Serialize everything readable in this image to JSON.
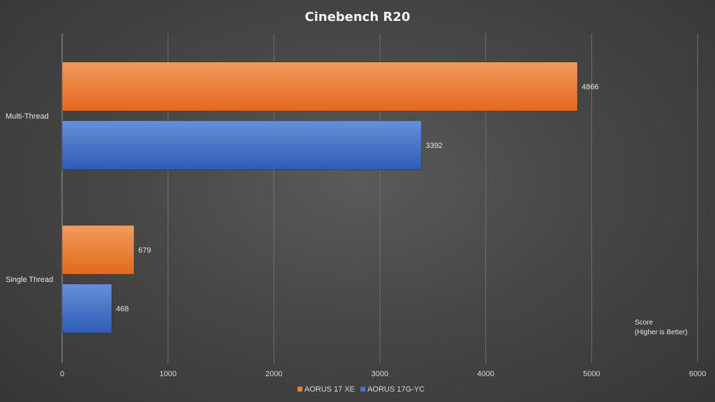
{
  "chart_data": {
    "type": "bar",
    "orientation": "horizontal",
    "title": "Cinebench  R20",
    "categories": [
      "Multi-Thread",
      "Single Thread"
    ],
    "series": [
      {
        "name": "AORUS 17 XE",
        "color": "#ed7d31",
        "values": [
          4866,
          679
        ]
      },
      {
        "name": "AORUS 17G-YC",
        "color": "#4472c4",
        "values": [
          3392,
          468
        ]
      }
    ],
    "xlim": [
      0,
      6000
    ],
    "ticks": [
      0,
      1000,
      2000,
      3000,
      4000,
      5000,
      6000
    ],
    "axis_note": [
      "Score",
      "(Higher is Better)"
    ],
    "grid": true,
    "legend_position": "bottom"
  }
}
